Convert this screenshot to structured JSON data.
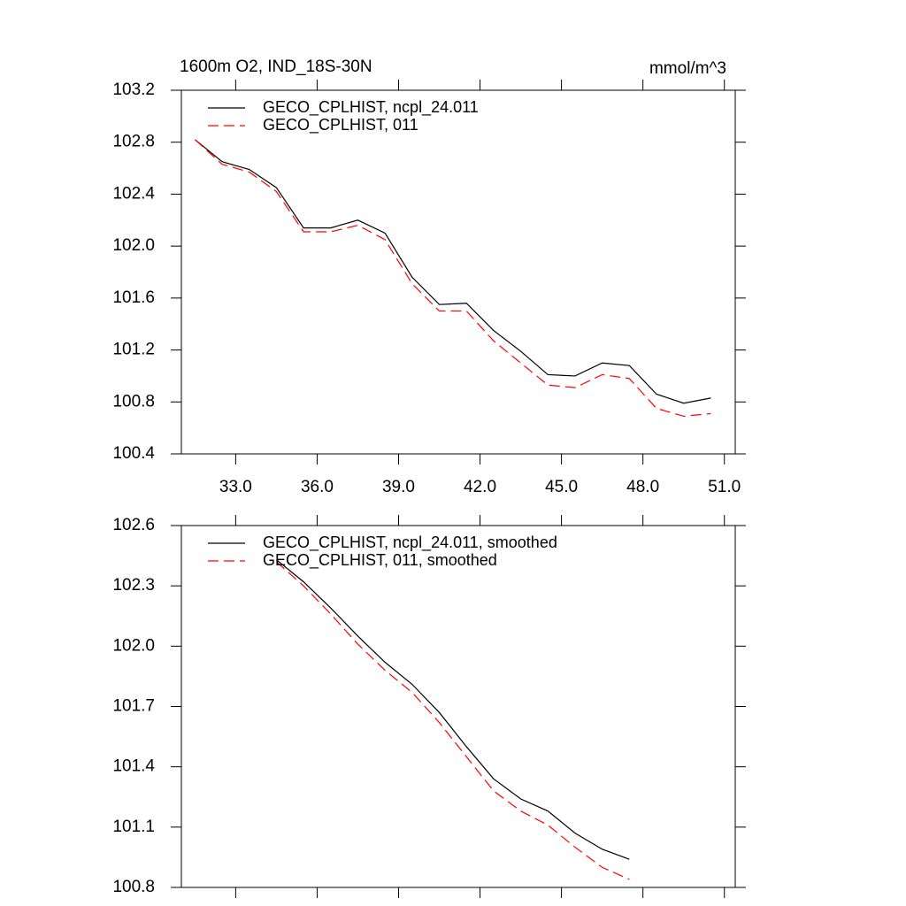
{
  "chart_data": [
    {
      "type": "line",
      "title_left": "1600m O2, IND_18S-30N",
      "title_right": "mmol/m^3",
      "x": [
        31.5,
        32.5,
        33.5,
        34.5,
        35.5,
        36.5,
        37.5,
        38.5,
        39.5,
        40.5,
        41.5,
        42.5,
        43.5,
        44.5,
        45.5,
        46.5,
        47.5,
        48.5,
        49.5,
        50.5
      ],
      "series": [
        {
          "name": "GECO_CPLHIST, ncpl_24.011",
          "color": "#000000",
          "dashed": false,
          "values": [
            102.82,
            102.65,
            102.59,
            102.45,
            102.14,
            102.14,
            102.2,
            102.1,
            101.76,
            101.55,
            101.56,
            101.35,
            101.19,
            101.01,
            101.0,
            101.1,
            101.08,
            100.86,
            100.79,
            100.83
          ]
        },
        {
          "name": "GECO_CPLHIST, 011",
          "color": "#ff0000",
          "dashed": true,
          "values": [
            102.82,
            102.63,
            102.57,
            102.42,
            102.11,
            102.11,
            102.16,
            102.05,
            101.71,
            101.5,
            101.5,
            101.27,
            101.1,
            100.93,
            100.91,
            101.01,
            100.98,
            100.75,
            100.69,
            100.71
          ]
        }
      ],
      "xlim": [
        31,
        51.4
      ],
      "xticks": [
        {
          "value": 33,
          "label": "33.0"
        },
        {
          "value": 36,
          "label": "36.0"
        },
        {
          "value": 39,
          "label": "39.0"
        },
        {
          "value": 42,
          "label": "42.0"
        },
        {
          "value": 45,
          "label": "45.0"
        },
        {
          "value": 48,
          "label": "48.0"
        },
        {
          "value": 51,
          "label": "51.0"
        }
      ],
      "ylim": [
        100.4,
        103.2
      ],
      "yticks": [
        103.2,
        102.8,
        102.4,
        {
          "value": 102,
          "label": "102.0"
        },
        101.6,
        101.2,
        100.8,
        100.4
      ],
      "xtick_labels": true
    },
    {
      "type": "line",
      "x": [
        34.5,
        35.5,
        36.5,
        37.5,
        38.5,
        39.5,
        40.5,
        41.5,
        42.5,
        43.5,
        44.5,
        45.5,
        46.5,
        47.5
      ],
      "series": [
        {
          "name": "GECO_CPLHIST, ncpl_24.011, smoothed",
          "color": "#000000",
          "dashed": false,
          "values": [
            102.43,
            102.32,
            102.19,
            102.05,
            101.92,
            101.81,
            101.67,
            101.5,
            101.34,
            101.24,
            101.18,
            101.07,
            100.99,
            100.94
          ]
        },
        {
          "name": "GECO_CPLHIST, 011, smoothed",
          "color": "#ff0000",
          "dashed": true,
          "values": [
            102.42,
            102.3,
            102.16,
            102.01,
            101.88,
            101.77,
            101.62,
            101.45,
            101.28,
            101.18,
            101.11,
            101.0,
            100.9,
            100.84
          ]
        }
      ],
      "xlim": [
        31,
        51.4
      ],
      "xticks": [
        33,
        36,
        39,
        42,
        45,
        48,
        51
      ],
      "ylim": [
        100.8,
        102.6
      ],
      "yticks": [
        102.6,
        102.3,
        {
          "value": 102,
          "label": "102.0"
        },
        101.7,
        101.4,
        101.1,
        100.8
      ],
      "xtick_labels": false
    }
  ]
}
